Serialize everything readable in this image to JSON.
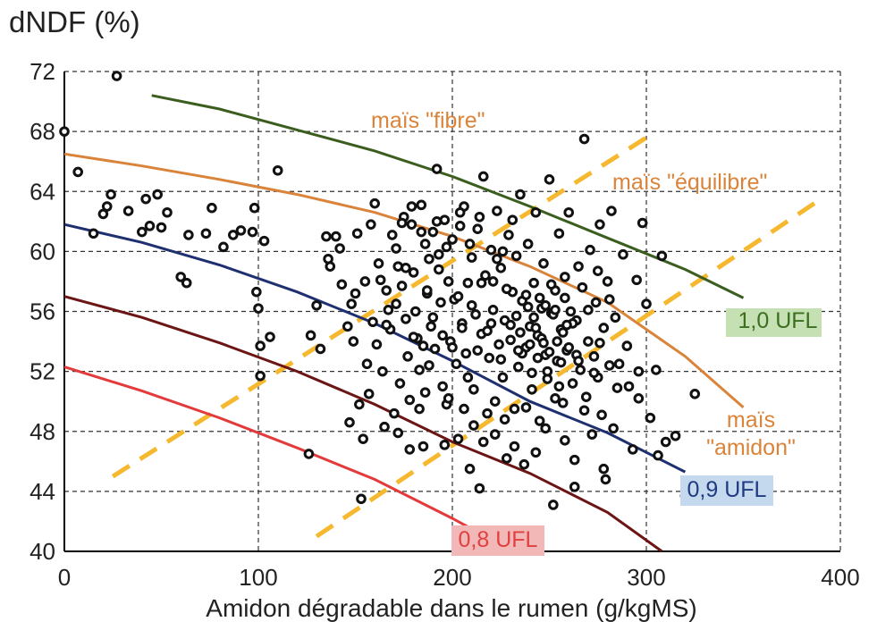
{
  "chart_data": {
    "type": "scatter",
    "title": "",
    "ylabel": "dNDF (%)",
    "xlabel": "Amidon dégradable dans le rumen (g/kgMS)",
    "xlim": [
      0,
      400
    ],
    "ylim": [
      40,
      72
    ],
    "xticks": [
      0,
      100,
      200,
      300,
      400
    ],
    "xtick_labels": [
      "0",
      "100",
      "200",
      "300",
      "400"
    ],
    "yticks": [
      40,
      44,
      48,
      52,
      56,
      60,
      64,
      68,
      72
    ],
    "ytick_labels": [
      "40",
      "44",
      "48",
      "52",
      "56",
      "60",
      "64",
      "68",
      "72"
    ],
    "grid": true,
    "grid_style": "dashed",
    "points": [
      [
        0,
        68
      ],
      [
        7,
        65.3
      ],
      [
        15,
        61.2
      ],
      [
        20,
        62.5
      ],
      [
        22,
        63
      ],
      [
        24,
        63.8
      ],
      [
        27,
        71.7
      ],
      [
        33,
        62.7
      ],
      [
        40,
        61.3
      ],
      [
        42,
        63.5
      ],
      [
        44,
        61.7
      ],
      [
        48,
        63.8
      ],
      [
        50,
        61.6
      ],
      [
        53,
        62.6
      ],
      [
        60,
        58.3
      ],
      [
        63,
        57.9
      ],
      [
        64,
        61.1
      ],
      [
        73,
        61.2
      ],
      [
        76,
        62.9
      ],
      [
        82,
        60.3
      ],
      [
        87,
        61.1
      ],
      [
        91,
        61.4
      ],
      [
        97,
        61.3
      ],
      [
        98,
        62.9
      ],
      [
        99,
        57.3
      ],
      [
        100,
        56.2
      ],
      [
        101,
        53.7
      ],
      [
        101,
        51.7
      ],
      [
        103,
        60.7
      ],
      [
        106,
        54.3
      ],
      [
        110,
        65.4
      ],
      [
        126,
        46.5
      ],
      [
        127,
        54.4
      ],
      [
        130,
        56.4
      ],
      [
        132,
        53.5
      ],
      [
        135,
        61.0
      ],
      [
        136,
        59.5
      ],
      [
        137,
        59.0
      ],
      [
        140,
        61
      ],
      [
        142,
        60.2
      ],
      [
        143,
        57.8
      ],
      [
        146,
        55.0
      ],
      [
        147,
        48.6
      ],
      [
        148,
        56.5
      ],
      [
        149,
        54.0
      ],
      [
        150,
        57.2
      ],
      [
        151,
        61.2
      ],
      [
        152,
        49.8
      ],
      [
        153,
        43.5
      ],
      [
        154,
        47.5
      ],
      [
        155,
        58.0
      ],
      [
        156,
        52.5
      ],
      [
        157,
        50.5
      ],
      [
        158,
        61.8
      ],
      [
        159,
        55.3
      ],
      [
        160,
        63.2
      ],
      [
        161,
        53.8
      ],
      [
        162,
        59.2
      ],
      [
        163,
        58.1
      ],
      [
        164,
        52.0
      ],
      [
        165,
        48.3
      ],
      [
        166,
        57.4
      ],
      [
        167,
        56.1
      ],
      [
        168,
        54.8
      ],
      [
        169,
        61.1
      ],
      [
        170,
        49.2
      ],
      [
        171,
        60.2
      ],
      [
        172,
        59.0
      ],
      [
        173,
        51.2
      ],
      [
        174,
        57.7
      ],
      [
        175,
        62.3
      ],
      [
        176,
        55.5
      ],
      [
        177,
        53.0
      ],
      [
        178,
        50.1
      ],
      [
        179,
        61.8
      ],
      [
        180,
        58.6
      ],
      [
        181,
        56.0
      ],
      [
        182,
        54.2
      ],
      [
        183,
        49.5
      ],
      [
        184,
        63.1
      ],
      [
        185,
        47.0
      ],
      [
        186,
        60.5
      ],
      [
        187,
        57.2
      ],
      [
        188,
        52.4
      ],
      [
        189,
        55.0
      ],
      [
        190,
        61.3
      ],
      [
        191,
        53.5
      ],
      [
        192,
        65.5
      ],
      [
        193,
        59.8
      ],
      [
        194,
        56.6
      ],
      [
        195,
        51.0
      ],
      [
        196,
        62.1
      ],
      [
        197,
        49.8
      ],
      [
        198,
        58.0
      ],
      [
        199,
        54.0
      ],
      [
        200,
        60.8
      ],
      [
        201,
        56.8
      ],
      [
        202,
        52.5
      ],
      [
        203,
        47.5
      ],
      [
        204,
        61.7
      ],
      [
        205,
        55.2
      ],
      [
        206,
        63.0
      ],
      [
        207,
        53.2
      ],
      [
        208,
        57.9
      ],
      [
        209,
        45.5
      ],
      [
        210,
        59.6
      ],
      [
        211,
        50.8
      ],
      [
        212,
        55.8
      ],
      [
        213,
        61.5
      ],
      [
        214,
        44.2
      ],
      [
        215,
        54.5
      ],
      [
        216,
        65.0
      ],
      [
        217,
        58.4
      ],
      [
        218,
        49.2
      ],
      [
        219,
        52.9
      ],
      [
        220,
        60.1
      ],
      [
        221,
        56.1
      ],
      [
        222,
        47.8
      ],
      [
        223,
        62.7
      ],
      [
        224,
        53.8
      ],
      [
        225,
        58.9
      ],
      [
        226,
        51.6
      ],
      [
        227,
        55.4
      ],
      [
        228,
        46.2
      ],
      [
        229,
        61.1
      ],
      [
        230,
        54.1
      ],
      [
        231,
        57.3
      ],
      [
        232,
        49.5
      ],
      [
        233,
        59.7
      ],
      [
        234,
        52.3
      ],
      [
        235,
        63.8
      ],
      [
        236,
        56.7
      ],
      [
        237,
        45.8
      ],
      [
        238,
        53.6
      ],
      [
        239,
        60.5
      ],
      [
        240,
        55.0
      ],
      [
        241,
        50.8
      ],
      [
        242,
        57.9
      ],
      [
        243,
        62.6
      ],
      [
        244,
        54.4
      ],
      [
        245,
        48.7
      ],
      [
        246,
        56.2
      ],
      [
        247,
        59.2
      ],
      [
        248,
        53.1
      ],
      [
        249,
        51.5
      ],
      [
        250,
        64.8
      ],
      [
        251,
        55.9
      ],
      [
        252,
        43.1
      ],
      [
        253,
        57.4
      ],
      [
        254,
        52.7
      ],
      [
        255,
        61.2
      ],
      [
        256,
        54.8
      ],
      [
        257,
        49.9
      ],
      [
        258,
        58.3
      ],
      [
        259,
        53.4
      ],
      [
        260,
        62.6
      ],
      [
        261,
        56.0
      ],
      [
        262,
        51.2
      ],
      [
        263,
        44.3
      ],
      [
        264,
        55.4
      ],
      [
        265,
        59.0
      ],
      [
        266,
        52.1
      ],
      [
        267,
        57.6
      ],
      [
        268,
        67.5
      ],
      [
        269,
        50.3
      ],
      [
        270,
        54.0
      ],
      [
        271,
        60.1
      ],
      [
        272,
        47.8
      ],
      [
        273,
        53.0
      ],
      [
        274,
        56.6
      ],
      [
        275,
        51.6
      ],
      [
        276,
        61.8
      ],
      [
        277,
        49.1
      ],
      [
        278,
        54.9
      ],
      [
        279,
        44.8
      ],
      [
        280,
        58.0
      ],
      [
        281,
        52.4
      ],
      [
        282,
        62.7
      ],
      [
        283,
        48.2
      ],
      [
        284,
        55.6
      ],
      [
        285,
        50.9
      ],
      [
        288,
        59.8
      ],
      [
        290,
        53.7
      ],
      [
        293,
        46.8
      ],
      [
        295,
        58.1
      ],
      [
        296,
        52.0
      ],
      [
        298,
        61.9
      ],
      [
        300,
        56.5
      ],
      [
        302,
        48.9
      ],
      [
        305,
        52.1
      ],
      [
        306,
        46.4
      ],
      [
        308,
        59.7
      ],
      [
        310,
        47.3
      ],
      [
        315,
        47.7
      ],
      [
        320,
        43.7
      ],
      [
        325,
        50.5
      ],
      [
        230,
        55.1
      ],
      [
        235,
        54.6
      ],
      [
        240,
        53.8
      ],
      [
        242,
        55.6
      ],
      [
        244,
        52.9
      ],
      [
        246,
        54.2
      ],
      [
        248,
        56.4
      ],
      [
        250,
        53.3
      ],
      [
        252,
        55.8
      ],
      [
        254,
        54.0
      ],
      [
        256,
        52.6
      ],
      [
        258,
        56.9
      ],
      [
        236,
        53.2
      ],
      [
        238,
        57.1
      ],
      [
        233,
        55.7
      ],
      [
        241,
        51.9
      ],
      [
        247,
        53.9
      ],
      [
        253,
        56.1
      ],
      [
        257,
        54.6
      ],
      [
        260,
        53.6
      ],
      [
        262,
        55.2
      ],
      [
        245,
        56.9
      ],
      [
        249,
        52.0
      ],
      [
        251,
        57.8
      ],
      [
        243,
        54.9
      ],
      [
        239,
        56.3
      ],
      [
        234,
        53.4
      ],
      [
        255,
        51.0
      ],
      [
        259,
        55.1
      ],
      [
        264,
        53.1
      ],
      [
        180,
        54.3
      ],
      [
        185,
        53.7
      ],
      [
        190,
        55.6
      ],
      [
        195,
        54.4
      ],
      [
        200,
        53.6
      ],
      [
        205,
        54.9
      ],
      [
        210,
        56.4
      ],
      [
        215,
        57.9
      ],
      [
        220,
        55.2
      ],
      [
        225,
        52.8
      ],
      [
        187,
        57.4
      ],
      [
        193,
        58.8
      ],
      [
        203,
        57.0
      ],
      [
        208,
        51.6
      ],
      [
        213,
        53.4
      ],
      [
        218,
        54.7
      ],
      [
        223,
        59.5
      ],
      [
        228,
        57.5
      ],
      [
        198,
        50.2
      ],
      [
        183,
        52.1
      ],
      [
        176,
        58.9
      ],
      [
        171,
        56.5
      ],
      [
        166,
        55.1
      ],
      [
        172,
        47.9
      ],
      [
        178,
        46.8
      ],
      [
        186,
        50.6
      ],
      [
        196,
        47.1
      ],
      [
        206,
        49.5
      ],
      [
        211,
        48.4
      ],
      [
        216,
        47.3
      ],
      [
        222,
        50.0
      ],
      [
        227,
        48.8
      ],
      [
        232,
        47.0
      ],
      [
        238,
        49.6
      ],
      [
        243,
        46.6
      ],
      [
        248,
        48.2
      ],
      [
        253,
        50.2
      ],
      [
        258,
        47.4
      ],
      [
        263,
        46.1
      ],
      [
        268,
        49.4
      ],
      [
        273,
        51.9
      ],
      [
        278,
        45.5
      ],
      [
        276,
        53.9
      ],
      [
        281,
        56.8
      ],
      [
        286,
        52.5
      ],
      [
        291,
        51.0
      ],
      [
        296,
        50.2
      ],
      [
        265,
        52.7
      ],
      [
        270,
        56.1
      ],
      [
        275,
        58.7
      ],
      [
        231,
        62.1
      ],
      [
        226,
        60.0
      ],
      [
        221,
        58.0
      ],
      [
        214,
        62.3
      ],
      [
        209,
        60.5
      ],
      [
        204,
        62.6
      ],
      [
        197,
        60.3
      ],
      [
        192,
        62.0
      ],
      [
        188,
        59.5
      ],
      [
        184,
        61.3
      ],
      [
        179,
        63.0
      ],
      [
        174,
        61.9
      ]
    ],
    "series": [
      {
        "name": "1,0 UFL",
        "color": "#3b5e1f",
        "x": [
          45,
          80,
          120,
          160,
          200,
          240,
          280,
          320,
          350
        ],
        "y": [
          70.4,
          69.5,
          68.1,
          66.7,
          65.0,
          63.0,
          60.9,
          58.8,
          56.9
        ]
      },
      {
        "name": "maïs \"fibre\"",
        "color": "#d9843a",
        "x": [
          0,
          40,
          80,
          120,
          160,
          200,
          240,
          280,
          320,
          350
        ],
        "y": [
          66.5,
          65.7,
          64.8,
          63.8,
          62.6,
          61.0,
          59.0,
          56.6,
          53.0,
          49.6
        ]
      },
      {
        "name": "0,9 UFL",
        "color": "#1f3070",
        "x": [
          0,
          40,
          80,
          120,
          160,
          200,
          240,
          280,
          320
        ],
        "y": [
          61.8,
          60.6,
          59.1,
          57.3,
          55.2,
          52.7,
          50.0,
          47.9,
          45.3
        ]
      },
      {
        "name": "",
        "color": "#6b1515",
        "x": [
          0,
          40,
          80,
          120,
          160,
          200,
          240,
          280,
          308
        ],
        "y": [
          57.0,
          55.6,
          53.9,
          52.0,
          49.8,
          47.3,
          45.2,
          42.6,
          40.0
        ]
      },
      {
        "name": "0,8 UFL",
        "color": "#e33b3b",
        "x": [
          0,
          40,
          80,
          120,
          160,
          200,
          210
        ],
        "y": [
          52.3,
          50.7,
          48.9,
          46.9,
          44.8,
          42.2,
          41.5
        ]
      }
    ],
    "dashed_lines": [
      {
        "color": "#f5b82e",
        "x": [
          25,
          305
        ],
        "y": [
          45.0,
          68.0
        ]
      },
      {
        "color": "#f5b82e",
        "x": [
          130,
          390
        ],
        "y": [
          41.0,
          63.5
        ]
      }
    ],
    "annotations": [
      {
        "text": "maïs \"fibre\"",
        "color": "#d9843a"
      },
      {
        "text": "maïs \"équilibre\"",
        "color": "#d9843a"
      },
      {
        "text": "1,0 UFL",
        "color": "#3b6e1f",
        "bg": "#c5e0b3"
      },
      {
        "text": "0,9 UFL",
        "color": "#1f3a80",
        "bg": "#c4d8ee"
      },
      {
        "text": "0,8 UFL",
        "color": "#e04040",
        "bg": "#f2b8b8"
      },
      {
        "text": "maïs",
        "color": "#d9843a"
      },
      {
        "text": "\"amidon\"",
        "color": "#d9843a"
      }
    ]
  }
}
